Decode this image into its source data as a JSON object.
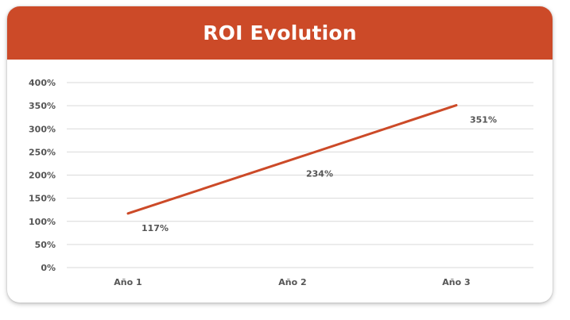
{
  "chart_data": {
    "type": "line",
    "title": "ROI Evolution",
    "xlabel": "",
    "ylabel": "",
    "categories": [
      "Año 1",
      "Año 2",
      "Año 3"
    ],
    "series": [
      {
        "values": [
          117,
          234,
          351
        ],
        "labels": [
          "117%",
          "234%",
          "351%"
        ]
      }
    ],
    "ylim": [
      0,
      400
    ],
    "yticks": [
      0,
      50,
      100,
      150,
      200,
      250,
      300,
      350,
      400
    ],
    "ytick_labels": [
      "0%",
      "50%",
      "100%",
      "150%",
      "200%",
      "250%",
      "300%",
      "350%",
      "400%"
    ],
    "grid": true,
    "legend": "none"
  },
  "colors": {
    "header": "#cc4a28",
    "line": "#cc4a28",
    "grid": "#d9d9d9"
  }
}
